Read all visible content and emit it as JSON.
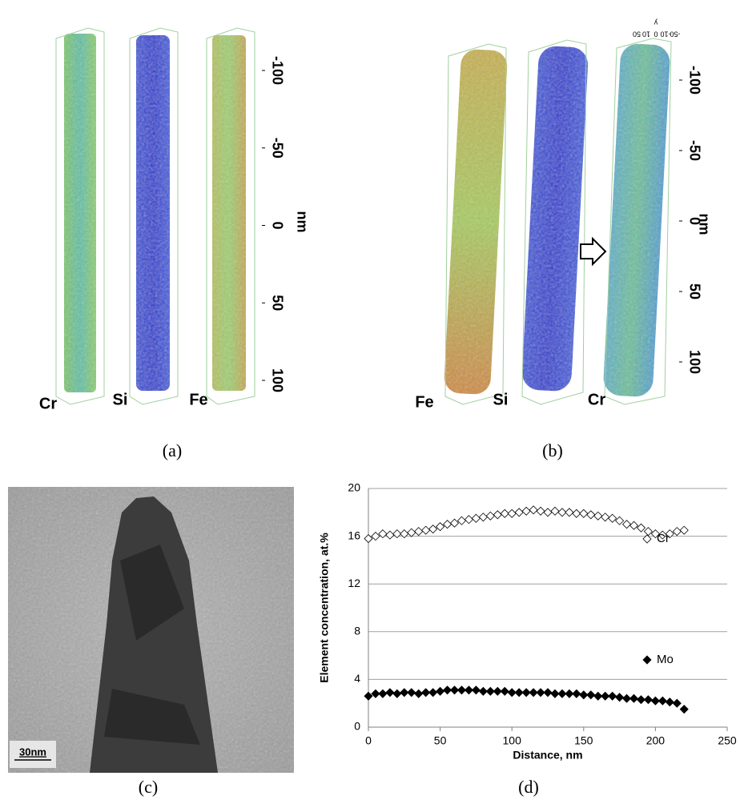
{
  "figure": {
    "panels": [
      {
        "label": "(a)",
        "rods": [
          "Cr",
          "Si",
          "Fe"
        ],
        "axis_label": "nm",
        "ticks": [
          -100,
          -50,
          0,
          50,
          100
        ]
      },
      {
        "label": "(b)",
        "rods": [
          "Fe",
          "Si",
          "Cr"
        ],
        "axis_label": "nm",
        "ticks": [
          -100,
          -50,
          0,
          50,
          100
        ],
        "top_ticks": [
          50,
          10,
          0,
          -10,
          -50
        ],
        "top_label": "y"
      },
      {
        "label": "(c)",
        "scale_bar": "30nm"
      }
    ]
  },
  "chart_data": {
    "type": "scatter",
    "panel_label": "(d)",
    "x_label": "Distance, nm",
    "y_label": "Element concentration, at.%",
    "x": [
      0,
      5,
      10,
      15,
      20,
      25,
      30,
      35,
      40,
      45,
      50,
      55,
      60,
      65,
      70,
      75,
      80,
      85,
      90,
      95,
      100,
      105,
      110,
      115,
      120,
      125,
      130,
      135,
      140,
      145,
      150,
      155,
      160,
      165,
      170,
      175,
      180,
      185,
      190,
      195,
      200,
      205,
      210,
      215,
      220
    ],
    "series": [
      {
        "name": "Cr",
        "color": "#000000",
        "marker": "open-diamond",
        "values": [
          15.8,
          16.0,
          16.2,
          16.1,
          16.2,
          16.2,
          16.3,
          16.4,
          16.5,
          16.6,
          16.8,
          17.0,
          17.1,
          17.3,
          17.4,
          17.5,
          17.6,
          17.7,
          17.8,
          17.9,
          17.9,
          18.0,
          18.1,
          18.2,
          18.1,
          18.0,
          18.1,
          18.0,
          18.0,
          17.9,
          17.9,
          17.8,
          17.7,
          17.6,
          17.5,
          17.3,
          17.0,
          16.9,
          16.7,
          16.4,
          16.2,
          16.1,
          16.2,
          16.4,
          16.5
        ]
      },
      {
        "name": "Mo",
        "color": "#000000",
        "marker": "filled-diamond",
        "values": [
          2.6,
          2.8,
          2.8,
          2.9,
          2.8,
          2.9,
          2.9,
          2.8,
          2.9,
          2.9,
          3.0,
          3.1,
          3.1,
          3.1,
          3.1,
          3.1,
          3.0,
          3.0,
          3.0,
          3.0,
          2.9,
          2.9,
          2.9,
          2.9,
          2.9,
          2.9,
          2.8,
          2.8,
          2.8,
          2.8,
          2.7,
          2.7,
          2.6,
          2.6,
          2.6,
          2.5,
          2.4,
          2.4,
          2.3,
          2.3,
          2.2,
          2.2,
          2.1,
          2.0,
          1.5
        ]
      }
    ],
    "xlim": [
      0,
      250
    ],
    "xticks": [
      0,
      50,
      100,
      150,
      200,
      250
    ],
    "ylim": [
      0,
      20
    ],
    "yticks": [
      0,
      4,
      8,
      12,
      16,
      20
    ],
    "grid": true,
    "legend": "right"
  }
}
